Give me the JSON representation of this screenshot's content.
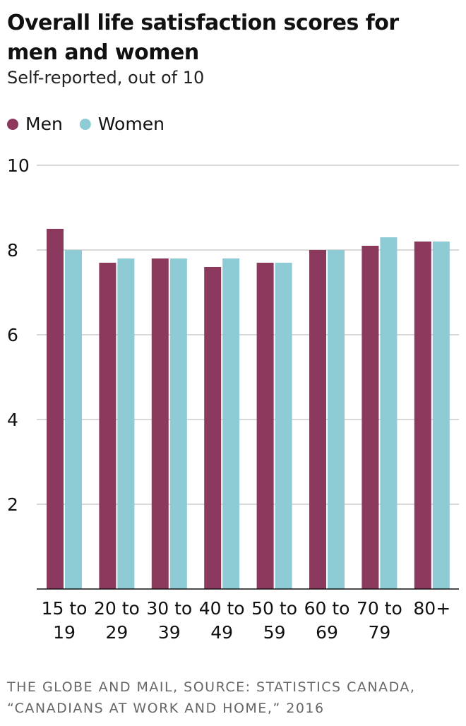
{
  "chart_data": {
    "type": "bar",
    "title": "Overall life satisfaction scores for men and women",
    "subtitle": "Self-reported, out of 10",
    "source": "THE GLOBE AND MAIL, SOURCE: STATISTICS CANADA, “CANADIANS AT WORK AND HOME,” 2016",
    "categories": [
      "15 to 19",
      "20 to 29",
      "30 to 39",
      "40 to 49",
      "50 to 59",
      "60 to 69",
      "70 to 79",
      "80+"
    ],
    "series": [
      {
        "name": "Men",
        "color": "#8b3a5e",
        "values": [
          8.5,
          7.7,
          7.8,
          7.6,
          7.7,
          8.0,
          8.1,
          8.2
        ]
      },
      {
        "name": "Women",
        "color": "#8ecbd4",
        "values": [
          8.0,
          7.8,
          7.8,
          7.8,
          7.7,
          8.0,
          8.3,
          8.2
        ]
      }
    ],
    "ylim": [
      0,
      10
    ],
    "yticks": [
      2,
      4,
      6,
      8,
      10
    ],
    "grid": true,
    "legend": "top-left"
  }
}
